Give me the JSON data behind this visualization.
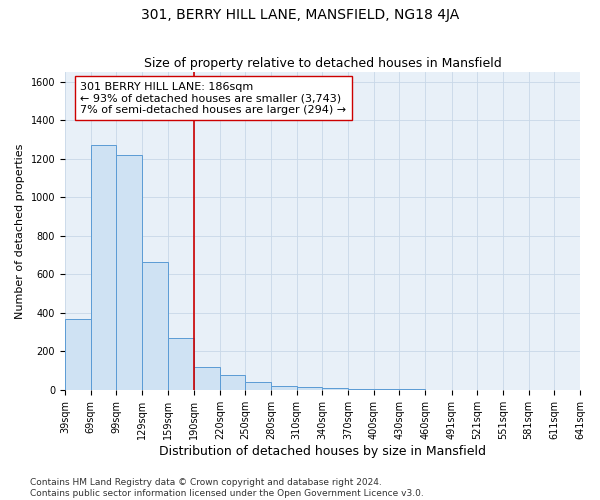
{
  "title": "301, BERRY HILL LANE, MANSFIELD, NG18 4JA",
  "subtitle": "Size of property relative to detached houses in Mansfield",
  "xlabel": "Distribution of detached houses by size in Mansfield",
  "ylabel": "Number of detached properties",
  "bar_left_edges": [
    39,
    69,
    99,
    129,
    159,
    190,
    220,
    250,
    280,
    310,
    340,
    370,
    400,
    430,
    460,
    491,
    521,
    551,
    581,
    611
  ],
  "bar_widths": [
    30,
    30,
    30,
    30,
    31,
    30,
    30,
    30,
    30,
    30,
    30,
    30,
    30,
    30,
    31,
    30,
    30,
    30,
    30,
    30
  ],
  "bar_heights": [
    370,
    1270,
    1220,
    665,
    270,
    120,
    75,
    40,
    20,
    15,
    10,
    5,
    3,
    2,
    1,
    0,
    0,
    0,
    0,
    0
  ],
  "bar_facecolor": "#cfe2f3",
  "bar_edgecolor": "#5b9bd5",
  "property_line_x": 190,
  "property_line_color": "#cc0000",
  "annotation_text": "301 BERRY HILL LANE: 186sqm\n← 93% of detached houses are smaller (3,743)\n7% of semi-detached houses are larger (294) →",
  "annotation_box_edgecolor": "#cc0000",
  "annotation_box_facecolor": "#ffffff",
  "xlim": [
    39,
    641
  ],
  "ylim": [
    0,
    1650
  ],
  "yticks": [
    0,
    200,
    400,
    600,
    800,
    1000,
    1200,
    1400,
    1600
  ],
  "xtick_labels": [
    "39sqm",
    "69sqm",
    "99sqm",
    "129sqm",
    "159sqm",
    "190sqm",
    "220sqm",
    "250sqm",
    "280sqm",
    "310sqm",
    "340sqm",
    "370sqm",
    "400sqm",
    "430sqm",
    "460sqm",
    "491sqm",
    "521sqm",
    "551sqm",
    "581sqm",
    "611sqm",
    "641sqm"
  ],
  "xtick_positions": [
    39,
    69,
    99,
    129,
    159,
    190,
    220,
    250,
    280,
    310,
    340,
    370,
    400,
    430,
    460,
    491,
    521,
    551,
    581,
    611,
    641
  ],
  "grid_color": "#c8d8e8",
  "bg_color": "#e8f0f8",
  "footnote": "Contains HM Land Registry data © Crown copyright and database right 2024.\nContains public sector information licensed under the Open Government Licence v3.0.",
  "title_fontsize": 10,
  "subtitle_fontsize": 9,
  "xlabel_fontsize": 9,
  "ylabel_fontsize": 8,
  "annotation_fontsize": 8,
  "tick_fontsize": 7,
  "footnote_fontsize": 6.5
}
